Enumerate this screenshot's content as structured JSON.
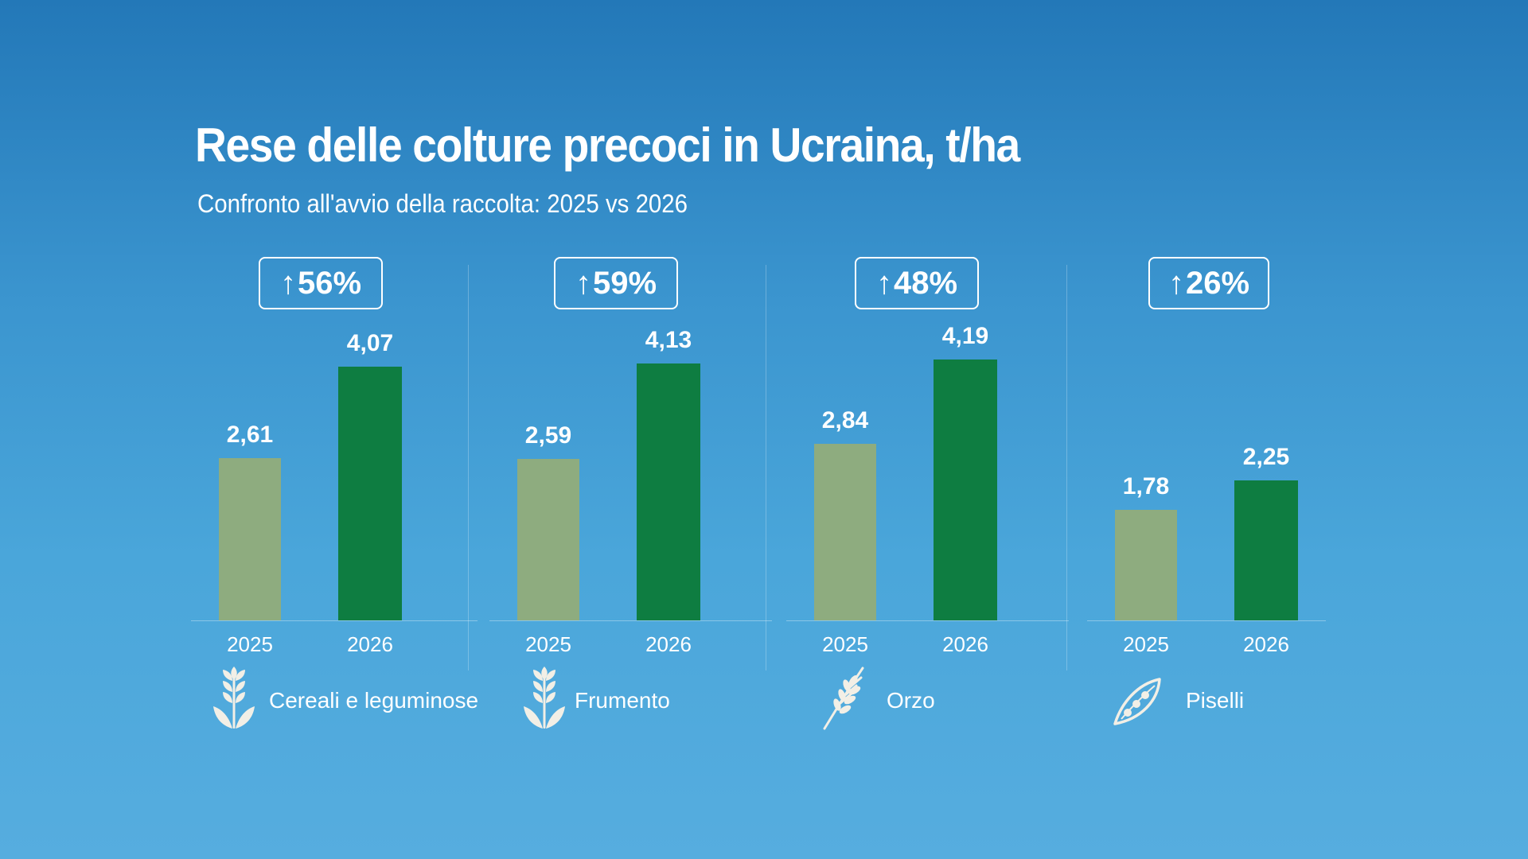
{
  "title": "Rese delle colture precoci in Ucraina, t/ha",
  "subtitle": "Confronto all'avvio della raccolta: 2025 vs 2026",
  "colors": {
    "bar_2025": "#8eac7f",
    "bar_2026": "#0e7d41",
    "background": "#3b95cf"
  },
  "chart_data": {
    "type": "bar",
    "title": "Rese delle colture precoci in Ucraina, t/ha",
    "subtitle": "Confronto all'avvio della raccolta: 2025 vs 2026",
    "ylim": [
      0,
      4.5
    ],
    "grid": false,
    "categories": [
      "2025",
      "2026"
    ],
    "panels": [
      {
        "crop": "Cereali e leguminose",
        "icon": "wheat-icon",
        "change": "56%",
        "values": [
          2.61,
          4.07
        ],
        "labels": [
          "2,61",
          "4,07"
        ]
      },
      {
        "crop": "Frumento",
        "icon": "wheat-icon",
        "change": "59%",
        "values": [
          2.59,
          4.13
        ],
        "labels": [
          "2,59",
          "4,13"
        ]
      },
      {
        "crop": "Orzo",
        "icon": "barley-icon",
        "change": "48%",
        "values": [
          2.84,
          4.19
        ],
        "labels": [
          "2,84",
          "4,19"
        ]
      },
      {
        "crop": "Piselli",
        "icon": "pea-pod-icon",
        "change": "26%",
        "values": [
          1.78,
          2.25
        ],
        "labels": [
          "1,78",
          "2,25"
        ]
      }
    ]
  }
}
